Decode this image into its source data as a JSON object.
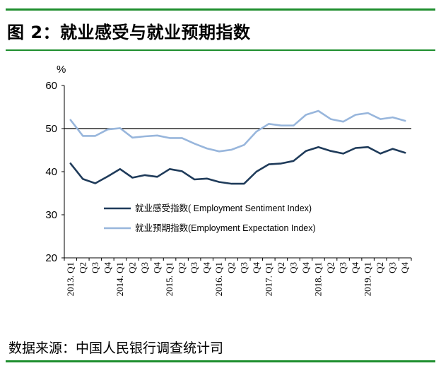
{
  "figure_title": "图 2：就业感受与就业预期指数",
  "source_note": "数据来源：中国人民银行调查统计司",
  "chart_data": {
    "type": "line",
    "title": "图 2：就业感受与就业预期指数",
    "ylabel": "%",
    "xlabel": "",
    "ylim": [
      20,
      60
    ],
    "yticks": [
      "20",
      "30",
      "40",
      "50",
      "60"
    ],
    "reference_line": 50,
    "categories": [
      "2013. Q1",
      "Q2",
      "Q3",
      "Q4",
      "2014. Q1",
      "Q2",
      "Q3",
      "Q4",
      "2015. Q1",
      "Q2",
      "Q3",
      "Q4",
      "2016. Q1",
      "Q2",
      "Q3",
      "Q4",
      "2017. Q1",
      "Q2",
      "Q3",
      "Q4",
      "2018. Q1",
      "Q2",
      "Q3",
      "Q4",
      "2019. Q1",
      "Q2",
      "Q3",
      "Q4"
    ],
    "series": [
      {
        "name": "就业感受指数( Employment Sentiment Index)",
        "color": "#1f3b5a",
        "values": [
          41.9,
          38.3,
          37.3,
          38.9,
          40.6,
          38.6,
          39.2,
          38.8,
          40.6,
          40.1,
          38.2,
          38.4,
          37.6,
          37.2,
          37.2,
          40.0,
          41.7,
          41.9,
          42.5,
          44.8,
          45.7,
          44.8,
          44.2,
          45.5,
          45.7,
          44.2,
          45.3,
          44.4
        ]
      },
      {
        "name": "就业预期指数(Employment Expectation Index)",
        "color": "#98b6dc",
        "values": [
          52.0,
          48.3,
          48.3,
          49.8,
          50.1,
          47.9,
          48.2,
          48.4,
          47.8,
          47.8,
          46.5,
          45.4,
          44.7,
          45.1,
          46.2,
          49.3,
          51.1,
          50.7,
          50.7,
          53.2,
          54.1,
          52.2,
          51.6,
          53.2,
          53.6,
          52.2,
          52.6,
          51.8
        ]
      }
    ]
  }
}
